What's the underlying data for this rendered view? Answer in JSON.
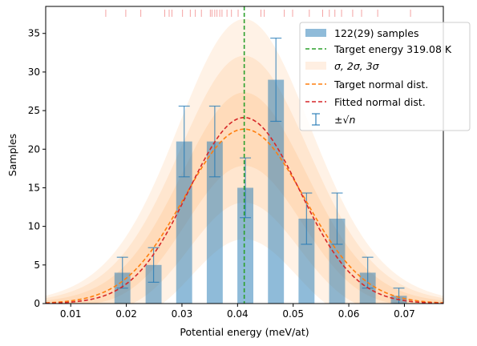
{
  "chart_data": {
    "type": "bar",
    "xlabel": "Potential energy (meV/at)",
    "ylabel": "Samples",
    "xlim": [
      0.0055,
      0.077
    ],
    "ylim": [
      0,
      38.5
    ],
    "x_ticks": [
      0.01,
      0.02,
      0.03,
      0.04,
      0.05,
      0.06,
      0.07
    ],
    "x_tick_labels": [
      "0.01",
      "0.02",
      "0.03",
      "0.04",
      "0.05",
      "0.06",
      "0.07"
    ],
    "y_ticks": [
      0,
      5,
      10,
      15,
      20,
      25,
      30,
      35
    ],
    "y_tick_labels": [
      "0",
      "5",
      "10",
      "15",
      "20",
      "25",
      "30",
      "35"
    ],
    "bin_width": 0.00287,
    "bars": {
      "name": "122(29) samples",
      "color": "#1f77b4",
      "x": [
        0.0193,
        0.0249,
        0.0304,
        0.0359,
        0.0414,
        0.0469,
        0.0524,
        0.0579,
        0.0634,
        0.069
      ],
      "values": [
        4,
        5,
        21,
        21,
        15,
        29,
        11,
        11,
        4,
        1
      ]
    },
    "error_bars": {
      "name": "±√n",
      "color": "#1f77b4",
      "lower": [
        2.0,
        2.76,
        16.42,
        16.42,
        11.13,
        23.61,
        7.68,
        7.68,
        2.0,
        0.0
      ],
      "upper": [
        6.0,
        7.24,
        25.58,
        25.58,
        18.87,
        34.39,
        14.32,
        14.32,
        6.0,
        2.0
      ]
    },
    "target_energy": {
      "name": "Target energy 319.08 K",
      "x": 0.0412,
      "color": "#2ca02c"
    },
    "sigma_bands": {
      "name": "σ, 2σ, 3σ",
      "color": "#ff7f0e"
    },
    "target_normal": {
      "name": "Target normal dist.",
      "mean": 0.0412,
      "sd": 0.0108,
      "peak": 22.6,
      "color": "#ff7f0e"
    },
    "fitted_normal": {
      "name": "Fitted normal dist.",
      "mean": 0.0412,
      "sd": 0.01,
      "peak": 24.1,
      "color": "#d62728"
    },
    "rug": {
      "color": "#f4a3a3",
      "x": [
        0.0163,
        0.0199,
        0.0226,
        0.0269,
        0.0277,
        0.0282,
        0.0301,
        0.0315,
        0.0324,
        0.0335,
        0.0351,
        0.0354,
        0.0359,
        0.0363,
        0.0368,
        0.0372,
        0.0381,
        0.0389,
        0.0401,
        0.0442,
        0.0448,
        0.0484,
        0.0499,
        0.0529,
        0.0553,
        0.0565,
        0.0575,
        0.0587,
        0.0607,
        0.0623,
        0.0652,
        0.0711
      ]
    },
    "grid": false,
    "legend_position": "top-right"
  }
}
